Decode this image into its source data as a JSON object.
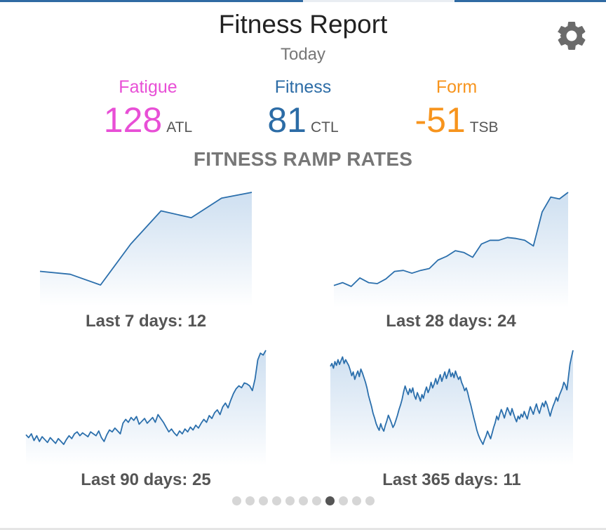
{
  "header": {
    "title": "Fitness Report",
    "subtitle": "Today",
    "settings_icon": "gear-icon"
  },
  "metrics": [
    {
      "label": "Fatigue",
      "value": "128",
      "unit": "ATL",
      "color": "#e84fd6"
    },
    {
      "label": "Fitness",
      "value": "81",
      "unit": "CTL",
      "color": "#2c6ca6"
    },
    {
      "label": "Form",
      "value": "-51",
      "unit": "TSB",
      "color": "#f7941d"
    }
  ],
  "section_title": "FITNESS RAMP RATES",
  "colors": {
    "line": "#2b6fac",
    "fill_top": "#c9dcef",
    "fill_bottom": "#ffffff"
  },
  "chart_data": [
    {
      "type": "area",
      "caption": "Last 7 days: 12",
      "x": [
        1,
        2,
        3,
        4,
        5,
        6,
        7,
        8
      ],
      "values": [
        0.19,
        0.16,
        0.05,
        0.47,
        0.81,
        0.74,
        0.94,
        1.0
      ]
    },
    {
      "type": "area",
      "caption": "Last 28 days: 24",
      "x": [
        1,
        2,
        3,
        4,
        5,
        6,
        7,
        8,
        9,
        10,
        11,
        12,
        13,
        14,
        15,
        16,
        17,
        18,
        19,
        20,
        21,
        22,
        23,
        24,
        25,
        26,
        27,
        28
      ],
      "values": [
        0.01,
        0.04,
        0.0,
        0.09,
        0.04,
        0.03,
        0.08,
        0.16,
        0.17,
        0.14,
        0.17,
        0.19,
        0.28,
        0.32,
        0.38,
        0.36,
        0.31,
        0.45,
        0.49,
        0.49,
        0.52,
        0.51,
        0.49,
        0.43,
        0.79,
        0.95,
        0.93,
        1.0
      ]
    },
    {
      "type": "area",
      "caption": "Last 90 days: 25",
      "x": [
        1,
        2,
        3,
        4,
        5,
        6,
        7,
        8,
        9,
        10,
        11,
        12,
        13,
        14,
        15,
        16,
        17,
        18,
        19,
        20,
        21,
        22,
        23,
        24,
        25,
        26,
        27,
        28,
        29,
        30,
        31,
        32,
        33,
        34,
        35,
        36,
        37,
        38,
        39,
        40,
        41,
        42,
        43,
        44,
        45,
        46,
        47,
        48,
        49,
        50,
        51,
        52,
        53,
        54,
        55,
        56,
        57,
        58,
        59,
        60,
        61,
        62,
        63,
        64,
        65,
        66,
        67,
        68,
        69,
        70,
        71,
        72,
        73,
        74,
        75,
        76,
        77,
        78,
        79,
        80,
        81,
        82,
        83,
        84,
        85,
        86,
        87,
        88,
        89,
        90
      ],
      "values": [
        0.12,
        0.09,
        0.13,
        0.06,
        0.11,
        0.05,
        0.1,
        0.07,
        0.04,
        0.09,
        0.06,
        0.03,
        0.08,
        0.05,
        0.02,
        0.07,
        0.11,
        0.08,
        0.13,
        0.15,
        0.11,
        0.14,
        0.12,
        0.1,
        0.15,
        0.13,
        0.11,
        0.16,
        0.09,
        0.05,
        0.12,
        0.17,
        0.15,
        0.19,
        0.16,
        0.13,
        0.24,
        0.28,
        0.25,
        0.3,
        0.27,
        0.31,
        0.23,
        0.26,
        0.29,
        0.24,
        0.27,
        0.3,
        0.25,
        0.33,
        0.29,
        0.25,
        0.2,
        0.15,
        0.18,
        0.14,
        0.11,
        0.16,
        0.13,
        0.18,
        0.15,
        0.2,
        0.17,
        0.22,
        0.19,
        0.24,
        0.28,
        0.25,
        0.32,
        0.29,
        0.35,
        0.38,
        0.33,
        0.41,
        0.45,
        0.4,
        0.48,
        0.55,
        0.6,
        0.63,
        0.61,
        0.66,
        0.65,
        0.63,
        0.58,
        0.7,
        0.9,
        0.97,
        0.95,
        1.0
      ]
    },
    {
      "type": "area",
      "caption": "Last 365 days: 11",
      "values": [
        0.83,
        0.86,
        0.81,
        0.88,
        0.84,
        0.9,
        0.85,
        0.89,
        0.93,
        0.86,
        0.9,
        0.87,
        0.84,
        0.79,
        0.73,
        0.77,
        0.69,
        0.74,
        0.78,
        0.72,
        0.8,
        0.76,
        0.71,
        0.66,
        0.6,
        0.52,
        0.46,
        0.4,
        0.33,
        0.28,
        0.22,
        0.18,
        0.15,
        0.22,
        0.17,
        0.14,
        0.2,
        0.25,
        0.31,
        0.27,
        0.23,
        0.18,
        0.21,
        0.26,
        0.31,
        0.37,
        0.42,
        0.48,
        0.56,
        0.62,
        0.57,
        0.53,
        0.59,
        0.55,
        0.6,
        0.52,
        0.48,
        0.55,
        0.51,
        0.46,
        0.53,
        0.49,
        0.56,
        0.61,
        0.55,
        0.59,
        0.66,
        0.6,
        0.64,
        0.7,
        0.64,
        0.69,
        0.74,
        0.67,
        0.72,
        0.77,
        0.7,
        0.75,
        0.8,
        0.72,
        0.76,
        0.71,
        0.78,
        0.73,
        0.69,
        0.72,
        0.66,
        0.62,
        0.57,
        0.6,
        0.55,
        0.48,
        0.42,
        0.35,
        0.28,
        0.22,
        0.15,
        0.1,
        0.06,
        0.03,
        0.0,
        0.05,
        0.09,
        0.14,
        0.1,
        0.06,
        0.12,
        0.18,
        0.23,
        0.3,
        0.26,
        0.32,
        0.37,
        0.33,
        0.28,
        0.34,
        0.39,
        0.35,
        0.31,
        0.38,
        0.33,
        0.28,
        0.24,
        0.3,
        0.27,
        0.32,
        0.29,
        0.35,
        0.31,
        0.27,
        0.34,
        0.4,
        0.36,
        0.32,
        0.38,
        0.43,
        0.37,
        0.33,
        0.39,
        0.44,
        0.4,
        0.46,
        0.42,
        0.36,
        0.3,
        0.36,
        0.41,
        0.45,
        0.5,
        0.46,
        0.52,
        0.56,
        0.6,
        0.66,
        0.63,
        0.58,
        0.72,
        0.85,
        0.93,
        1.0
      ]
    }
  ],
  "pager": {
    "count": 11,
    "active": 7
  }
}
